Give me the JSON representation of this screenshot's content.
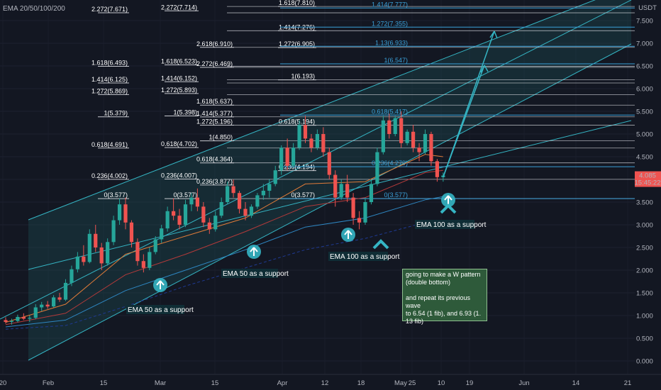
{
  "indicator_label": "EMA 20/50/100/200",
  "chart_data": {
    "type": "candlestick",
    "y_axis": {
      "unit": "USDT",
      "ylim": [
        -0.2,
        7.95
      ],
      "ticks": [
        "0.000",
        "0.500",
        "1.000",
        "1.500",
        "2.000",
        "2.500",
        "3.000",
        "3.500",
        "4.000",
        "4.500",
        "5.000",
        "5.500",
        "6.000",
        "6.500",
        "7.000",
        "7.500"
      ]
    },
    "x_axis": {
      "ticks": [
        "20",
        "Feb",
        "15",
        "Mar",
        "15",
        "Apr",
        "12",
        "18",
        "25",
        "May",
        "10",
        "19",
        "Jun",
        "14",
        "21"
      ]
    },
    "price_badge": {
      "value": "4.085",
      "countdown": "15:45:22"
    },
    "candles_ohlc": [
      [
        0.9,
        0.96,
        0.82,
        0.86
      ],
      [
        0.86,
        0.93,
        0.8,
        0.88
      ],
      [
        0.88,
        1.02,
        0.85,
        0.97
      ],
      [
        0.97,
        1.05,
        0.9,
        0.93
      ],
      [
        0.93,
        1.0,
        0.86,
        0.95
      ],
      [
        0.95,
        1.25,
        0.92,
        1.18
      ],
      [
        1.18,
        1.3,
        1.1,
        1.24
      ],
      [
        1.24,
        1.32,
        1.15,
        1.2
      ],
      [
        1.2,
        1.45,
        1.18,
        1.4
      ],
      [
        1.4,
        1.5,
        1.3,
        1.35
      ],
      [
        1.35,
        1.8,
        1.32,
        1.72
      ],
      [
        1.72,
        2.1,
        1.65,
        2.02
      ],
      [
        2.02,
        2.4,
        1.95,
        2.3
      ],
      [
        2.3,
        2.55,
        2.1,
        2.18
      ],
      [
        2.18,
        2.9,
        2.15,
        2.8
      ],
      [
        2.8,
        3.0,
        2.4,
        2.5
      ],
      [
        2.5,
        2.6,
        2.0,
        2.15
      ],
      [
        2.15,
        2.7,
        2.1,
        2.62
      ],
      [
        2.62,
        3.2,
        2.55,
        3.1
      ],
      [
        3.1,
        3.58,
        3.0,
        3.45
      ],
      [
        3.45,
        3.6,
        2.9,
        3.05
      ],
      [
        3.05,
        3.1,
        2.5,
        2.62
      ],
      [
        2.62,
        2.7,
        2.1,
        2.2
      ],
      [
        2.2,
        2.35,
        1.95,
        2.05
      ],
      [
        2.05,
        2.5,
        2.0,
        2.4
      ],
      [
        2.4,
        2.75,
        2.35,
        2.68
      ],
      [
        2.68,
        3.0,
        2.6,
        2.92
      ],
      [
        2.92,
        3.4,
        2.85,
        3.3
      ],
      [
        3.3,
        3.58,
        3.1,
        3.2
      ],
      [
        3.2,
        3.35,
        2.9,
        3.0
      ],
      [
        3.0,
        3.55,
        2.95,
        3.45
      ],
      [
        3.45,
        3.7,
        3.3,
        3.6
      ],
      [
        3.6,
        3.8,
        3.3,
        3.4
      ],
      [
        3.4,
        3.5,
        2.95,
        3.05
      ],
      [
        3.05,
        3.15,
        2.8,
        2.9
      ],
      [
        2.9,
        3.3,
        2.85,
        3.2
      ],
      [
        3.2,
        3.6,
        3.15,
        3.5
      ],
      [
        3.5,
        3.95,
        3.45,
        3.85
      ],
      [
        3.85,
        4.0,
        3.6,
        3.7
      ],
      [
        3.7,
        3.75,
        3.25,
        3.35
      ],
      [
        3.35,
        3.5,
        3.1,
        3.2
      ],
      [
        3.2,
        3.45,
        3.15,
        3.4
      ],
      [
        3.4,
        3.7,
        3.35,
        3.65
      ],
      [
        3.65,
        3.9,
        3.55,
        3.75
      ],
      [
        3.75,
        4.0,
        3.6,
        3.9
      ],
      [
        3.9,
        4.3,
        3.85,
        4.2
      ],
      [
        4.2,
        4.75,
        4.1,
        4.7
      ],
      [
        4.7,
        4.9,
        4.2,
        4.3
      ],
      [
        4.3,
        4.8,
        4.25,
        4.7
      ],
      [
        4.7,
        5.3,
        4.65,
        5.2
      ],
      [
        5.2,
        5.4,
        4.8,
        4.9
      ],
      [
        4.9,
        5.0,
        4.6,
        4.7
      ],
      [
        4.7,
        5.1,
        4.65,
        5.0
      ],
      [
        5.0,
        5.15,
        4.5,
        4.6
      ],
      [
        4.6,
        4.7,
        4.0,
        4.1
      ],
      [
        4.1,
        4.2,
        3.4,
        3.6
      ],
      [
        3.6,
        4.0,
        3.55,
        3.9
      ],
      [
        3.9,
        4.1,
        3.5,
        3.6
      ],
      [
        3.6,
        3.7,
        3.0,
        3.15
      ],
      [
        3.15,
        3.3,
        2.9,
        3.05
      ],
      [
        3.05,
        3.6,
        3.0,
        3.5
      ],
      [
        3.5,
        4.0,
        3.45,
        3.9
      ],
      [
        3.9,
        4.7,
        3.85,
        4.6
      ],
      [
        4.6,
        5.4,
        4.55,
        5.3
      ],
      [
        5.3,
        5.45,
        4.9,
        5.0
      ],
      [
        5.0,
        5.4,
        4.95,
        5.35
      ],
      [
        5.35,
        5.5,
        4.7,
        4.8
      ],
      [
        4.8,
        5.1,
        4.75,
        5.05
      ],
      [
        5.05,
        5.2,
        4.6,
        4.7
      ],
      [
        4.7,
        4.8,
        4.4,
        4.6
      ],
      [
        4.6,
        5.1,
        4.55,
        5.0
      ],
      [
        5.0,
        5.05,
        4.3,
        4.4
      ],
      [
        4.4,
        4.45,
        3.95,
        4.05
      ],
      [
        4.05,
        4.15,
        3.95,
        4.085
      ]
    ],
    "ema_lines": [
      {
        "color": "#e07b39",
        "points": [
          [
            0,
            0.85
          ],
          [
            10,
            1.25
          ],
          [
            20,
            2.35
          ],
          [
            30,
            2.75
          ],
          [
            40,
            3.15
          ],
          [
            50,
            3.9
          ],
          [
            60,
            3.95
          ],
          [
            70,
            4.55
          ],
          [
            73,
            4.5
          ]
        ]
      },
      {
        "color": "#b23a3a",
        "points": [
          [
            0,
            0.8
          ],
          [
            10,
            1.05
          ],
          [
            20,
            1.9
          ],
          [
            30,
            2.35
          ],
          [
            40,
            2.85
          ],
          [
            50,
            3.4
          ],
          [
            60,
            3.6
          ],
          [
            70,
            4.15
          ],
          [
            73,
            4.2
          ]
        ]
      },
      {
        "color": "#2e86c1",
        "points": [
          [
            0,
            0.75
          ],
          [
            10,
            0.9
          ],
          [
            20,
            1.55
          ],
          [
            30,
            2.0
          ],
          [
            40,
            2.45
          ],
          [
            50,
            2.95
          ],
          [
            60,
            3.15
          ],
          [
            70,
            3.55
          ],
          [
            73,
            3.62
          ]
        ]
      },
      {
        "color": "#1f3a93",
        "points": [
          [
            0,
            0.7
          ],
          [
            10,
            0.78
          ],
          [
            20,
            1.2
          ],
          [
            30,
            1.65
          ],
          [
            40,
            2.05
          ],
          [
            50,
            2.45
          ],
          [
            60,
            2.7
          ],
          [
            70,
            3.05
          ],
          [
            73,
            3.1
          ]
        ]
      }
    ],
    "fib_groups": [
      {
        "x_start": 0,
        "x_end": 30,
        "levels": [
          [
            "0(3.577)",
            3.577
          ],
          [
            "0.236(4.002)",
            4.002
          ],
          [
            "0.618(4.691)",
            4.691
          ],
          [
            "1(5.379)",
            5.379
          ],
          [
            "1.272(5.869)",
            5.869
          ],
          [
            "1.414(6.125)",
            6.125
          ],
          [
            "1.618(6.493)",
            6.493
          ],
          [
            "2.272(7.671)",
            7.671
          ]
        ]
      },
      {
        "x_start": 14,
        "x_end": 42,
        "levels": [
          [
            "0(3.577)",
            3.577
          ],
          [
            "0.236(4.007)",
            4.007
          ],
          [
            "0.618(4.702)",
            4.702
          ],
          [
            "1(5.398)",
            5.398
          ],
          [
            "1.272(5.893)",
            5.893
          ],
          [
            "1.414(6.152)",
            6.152
          ],
          [
            "1.618(6.523)",
            6.523
          ],
          [
            "2.272(7.714)",
            7.714
          ]
        ]
      },
      {
        "x_start": 26,
        "x_end": 72,
        "levels": [
          [
            "0.236(3.877)",
            3.877
          ],
          [
            "0.618(4.364)",
            4.364
          ],
          [
            "1(4.850)",
            4.85
          ],
          [
            "1.272(5.196)",
            5.196
          ],
          [
            "1.414(5.377)",
            5.377
          ],
          [
            "1.618(5.637)",
            5.637
          ],
          [
            "2.272(6.469)",
            6.469
          ],
          [
            "2.618(6.910)",
            6.91
          ]
        ]
      },
      {
        "x_start": 38,
        "x_end": 76,
        "levels": [
          [
            "0(3.577)",
            3.577
          ],
          [
            "0.236(4.194)",
            4.194
          ],
          [
            "0.618(5.194)",
            5.194
          ],
          [
            "1(6.193)",
            6.193
          ],
          [
            "1.272(6.905)",
            6.905
          ],
          [
            "1.414(7.276)",
            7.276
          ],
          [
            "1.618(7.810)",
            7.81
          ]
        ]
      }
    ],
    "fib_blue_levels": [
      [
        "0(3.577)",
        3.577
      ],
      [
        "0.236(4.279)",
        4.279
      ],
      [
        "0.618(5.417)",
        5.417
      ],
      [
        "1(6.547)",
        6.547
      ],
      [
        "1.13(6.933)",
        6.933
      ],
      [
        "1.272(7.355)",
        7.355
      ],
      [
        "1.414(7.777)",
        7.777
      ]
    ],
    "annotations": [
      {
        "text": "EMA 50 as a support",
        "candle": 13,
        "price": 1.95
      },
      {
        "text": "EMA 50 as a support",
        "candle": 33,
        "price": 2.55
      },
      {
        "text": "EMA 100 as a support",
        "candle": 58,
        "price": 2.75
      },
      {
        "text": "EMA 100 as a support",
        "candle": 73,
        "price": 3.6
      }
    ],
    "note_lines": [
      "going to make a W pattern",
      "(double bottom)",
      "and repeat its previous wave",
      "to 6.54 (1 fib), and 6.93 (1.",
      "13 fib)"
    ]
  }
}
